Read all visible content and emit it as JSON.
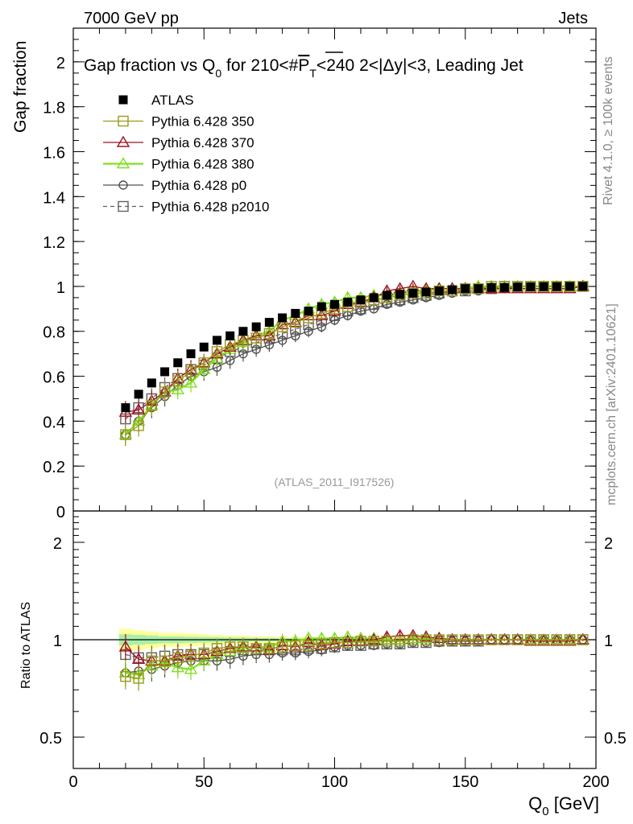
{
  "header": {
    "left": "7000 GeV pp",
    "right": "Jets"
  },
  "side_labels": {
    "rivet": "Rivet 4.1.0, ≥ 100k events",
    "mcplots": "mcplots.cern.ch [arXiv:2401.10621]"
  },
  "colors": {
    "atlas": "#000000",
    "p350": "#9a9a1a",
    "p370": "#a01020",
    "p380": "#80e020",
    "p0": "#505050",
    "p2010": "#606060",
    "band_outer": "#ffff99",
    "band_inner": "#aaf0aa"
  },
  "chart_data": [
    {
      "type": "scatter",
      "panel": "main",
      "title": "Gap fraction vs Q_0 for 210<#P_T<240  2<|Δy|<3, Leading Jet",
      "title_parts": {
        "pre": "Gap fraction vs Q",
        "sub0": "0",
        "mid": " for 210<#",
        "over": "P",
        "subT": "T",
        "post": "<240  2<|Δy|<3, Leading Jet"
      },
      "ylabel": "Gap fraction",
      "xlabel": "Q_0 [GeV]",
      "watermark": "(ATLAS_2011_I917526)",
      "xlim": [
        0,
        200
      ],
      "ylim": [
        0,
        2.15
      ],
      "xticks": [
        0,
        50,
        100,
        150,
        200
      ],
      "yticks": [
        0,
        0.2,
        0.4,
        0.6,
        0.8,
        1,
        1.2,
        1.4,
        1.6,
        1.8,
        2
      ],
      "ytick_labels": [
        "0",
        "0.2",
        "0.4",
        "0.6",
        "0.8",
        "1",
        "1.2",
        "1.4",
        "1.6",
        "1.8",
        "2"
      ],
      "x": [
        20,
        25,
        30,
        35,
        40,
        45,
        50,
        55,
        60,
        65,
        70,
        75,
        80,
        85,
        90,
        95,
        100,
        105,
        110,
        115,
        120,
        125,
        130,
        135,
        140,
        145,
        150,
        155,
        160,
        165,
        170,
        175,
        180,
        185,
        190,
        195
      ],
      "series": [
        {
          "name": "ATLAS",
          "key": "atlas",
          "marker": "filled-square",
          "values": [
            0.46,
            0.52,
            0.57,
            0.62,
            0.66,
            0.7,
            0.73,
            0.76,
            0.78,
            0.8,
            0.82,
            0.84,
            0.86,
            0.88,
            0.89,
            0.91,
            0.92,
            0.93,
            0.94,
            0.95,
            0.96,
            0.965,
            0.97,
            0.975,
            0.98,
            0.985,
            0.99,
            0.99,
            0.995,
            0.995,
            0.997,
            0.998,
            0.999,
            0.999,
            1.0,
            1.0
          ]
        },
        {
          "name": "Pythia 6.428 350",
          "key": "p350",
          "marker": "open-square",
          "line": "solid",
          "values": [
            0.34,
            0.38,
            0.47,
            0.53,
            0.58,
            0.62,
            0.66,
            0.71,
            0.74,
            0.76,
            0.77,
            0.79,
            0.82,
            0.84,
            0.86,
            0.88,
            0.9,
            0.91,
            0.93,
            0.94,
            0.95,
            0.96,
            0.97,
            0.97,
            0.98,
            0.98,
            0.99,
            0.99,
            1.0,
            1.0,
            1.0,
            1.0,
            1.0,
            1.0,
            1.0,
            1.0
          ]
        },
        {
          "name": "Pythia 6.428 370",
          "key": "p370",
          "marker": "open-triangle",
          "line": "solid",
          "values": [
            0.44,
            0.45,
            0.49,
            0.53,
            0.59,
            0.63,
            0.66,
            0.7,
            0.73,
            0.76,
            0.78,
            0.78,
            0.83,
            0.84,
            0.87,
            0.87,
            0.89,
            0.92,
            0.93,
            0.95,
            0.98,
            0.99,
            1.0,
            0.99,
            0.99,
            0.99,
            0.99,
            0.99,
            0.99,
            0.99,
            0.99,
            0.99,
            0.99,
            0.99,
            0.99,
            1.0
          ]
        },
        {
          "name": "Pythia 6.428 380",
          "key": "p380",
          "marker": "open-triangle",
          "line": "solid",
          "values": [
            0.34,
            0.4,
            0.47,
            0.53,
            0.54,
            0.57,
            0.63,
            0.68,
            0.72,
            0.75,
            0.78,
            0.8,
            0.85,
            0.87,
            0.9,
            0.92,
            0.93,
            0.95,
            0.95,
            0.96,
            0.96,
            0.97,
            0.98,
            0.98,
            0.99,
            0.99,
            0.99,
            1.0,
            1.0,
            1.0,
            1.0,
            1.0,
            1.0,
            1.0,
            1.0,
            1.0
          ]
        },
        {
          "name": "Pythia 6.428 p0",
          "key": "p0",
          "marker": "open-circle",
          "line": "solid",
          "values": [
            0.34,
            0.4,
            0.46,
            0.51,
            0.56,
            0.6,
            0.62,
            0.64,
            0.67,
            0.7,
            0.72,
            0.74,
            0.76,
            0.78,
            0.8,
            0.82,
            0.85,
            0.87,
            0.89,
            0.9,
            0.92,
            0.93,
            0.94,
            0.95,
            0.96,
            0.97,
            0.98,
            0.98,
            0.99,
            0.99,
            1.0,
            1.0,
            1.0,
            1.0,
            1.0,
            1.0
          ]
        },
        {
          "name": "Pythia 6.428 p2010",
          "key": "p2010",
          "marker": "open-square",
          "line": "dashed",
          "values": [
            0.41,
            0.46,
            0.5,
            0.55,
            0.59,
            0.63,
            0.65,
            0.68,
            0.71,
            0.73,
            0.75,
            0.77,
            0.79,
            0.81,
            0.83,
            0.85,
            0.87,
            0.89,
            0.9,
            0.92,
            0.93,
            0.94,
            0.95,
            0.96,
            0.97,
            0.98,
            0.98,
            0.99,
            0.99,
            1.0,
            1.0,
            1.0,
            1.0,
            1.0,
            1.0,
            1.0
          ]
        }
      ]
    },
    {
      "type": "scatter",
      "panel": "ratio",
      "ylabel": "Ratio to ATLAS",
      "scale": "log",
      "ylim": [
        0.4,
        2.5
      ],
      "yticks": [
        0.5,
        1,
        2
      ],
      "ytick_labels": [
        "0.5",
        "1",
        "2"
      ],
      "reference_line": 1,
      "atlas_band": {
        "x": [
          20,
          25,
          30,
          35,
          40,
          45,
          50,
          55,
          60,
          65,
          70,
          75,
          80,
          85,
          90,
          95,
          100,
          105,
          110,
          115,
          120,
          125,
          130,
          135,
          140,
          145,
          150
        ],
        "outer": [
          0.08,
          0.07,
          0.06,
          0.05,
          0.05,
          0.045,
          0.04,
          0.035,
          0.03,
          0.03,
          0.025,
          0.025,
          0.02,
          0.02,
          0.02,
          0.018,
          0.016,
          0.015,
          0.013,
          0.012,
          0.01,
          0.01,
          0.008,
          0.007,
          0.006,
          0.005,
          0.004
        ],
        "inner": [
          0.04,
          0.035,
          0.03,
          0.025,
          0.025,
          0.022,
          0.02,
          0.018,
          0.015,
          0.015,
          0.013,
          0.012,
          0.01,
          0.01,
          0.01,
          0.009,
          0.008,
          0.008,
          0.007,
          0.006,
          0.005,
          0.005,
          0.004,
          0.004,
          0.003,
          0.003,
          0.002
        ]
      },
      "series": [
        {
          "name": "Pythia 6.428 350",
          "key": "p350",
          "values": [
            0.77,
            0.76,
            0.86,
            0.86,
            0.88,
            0.89,
            0.91,
            0.94,
            0.95,
            0.95,
            0.94,
            0.94,
            0.95,
            0.96,
            0.96,
            0.97,
            0.98,
            0.98,
            0.99,
            0.99,
            0.99,
            0.99,
            1.0,
            1.0,
            1.0,
            1.0,
            1.0,
            1.0,
            1.0,
            1.0,
            1.0,
            1.0,
            1.0,
            1.0,
            1.0,
            1.0
          ]
        },
        {
          "name": "Pythia 6.428 370",
          "key": "p370",
          "values": [
            0.95,
            0.87,
            0.86,
            0.86,
            0.89,
            0.9,
            0.9,
            0.92,
            0.94,
            0.95,
            0.95,
            0.93,
            0.96,
            0.95,
            0.98,
            0.96,
            0.97,
            0.99,
            0.99,
            1.0,
            1.02,
            1.03,
            1.03,
            1.02,
            1.01,
            1.0,
            1.0,
            1.0,
            1.0,
            1.0,
            1.0,
            0.99,
            0.99,
            0.99,
            0.99,
            1.0
          ]
        },
        {
          "name": "Pythia 6.428 380",
          "key": "p380",
          "values": [
            0.79,
            0.78,
            0.83,
            0.85,
            0.82,
            0.81,
            0.86,
            0.9,
            0.92,
            0.94,
            0.95,
            0.95,
            0.99,
            0.99,
            1.01,
            1.01,
            1.01,
            1.02,
            1.01,
            1.01,
            1.0,
            1.0,
            1.01,
            1.01,
            1.01,
            1.0,
            1.0,
            1.0,
            1.0,
            1.0,
            1.0,
            1.0,
            1.0,
            1.0,
            1.0,
            1.0
          ]
        },
        {
          "name": "Pythia 6.428 p0",
          "key": "p0",
          "values": [
            0.79,
            0.8,
            0.81,
            0.83,
            0.85,
            0.86,
            0.86,
            0.86,
            0.87,
            0.89,
            0.9,
            0.9,
            0.91,
            0.91,
            0.92,
            0.93,
            0.95,
            0.96,
            0.96,
            0.96,
            0.97,
            0.97,
            0.98,
            0.98,
            0.98,
            0.99,
            0.99,
            0.99,
            1.0,
            1.0,
            1.0,
            1.0,
            1.0,
            1.0,
            1.0,
            1.0
          ]
        },
        {
          "name": "Pythia 6.428 p2010",
          "key": "p2010",
          "values": [
            0.9,
            0.88,
            0.88,
            0.89,
            0.9,
            0.9,
            0.9,
            0.91,
            0.92,
            0.93,
            0.93,
            0.93,
            0.93,
            0.93,
            0.94,
            0.94,
            0.95,
            0.96,
            0.96,
            0.97,
            0.97,
            0.97,
            0.98,
            0.98,
            0.99,
            0.99,
            0.99,
            0.99,
            1.0,
            1.0,
            1.0,
            1.0,
            1.0,
            1.0,
            1.0,
            1.0
          ]
        }
      ]
    }
  ]
}
